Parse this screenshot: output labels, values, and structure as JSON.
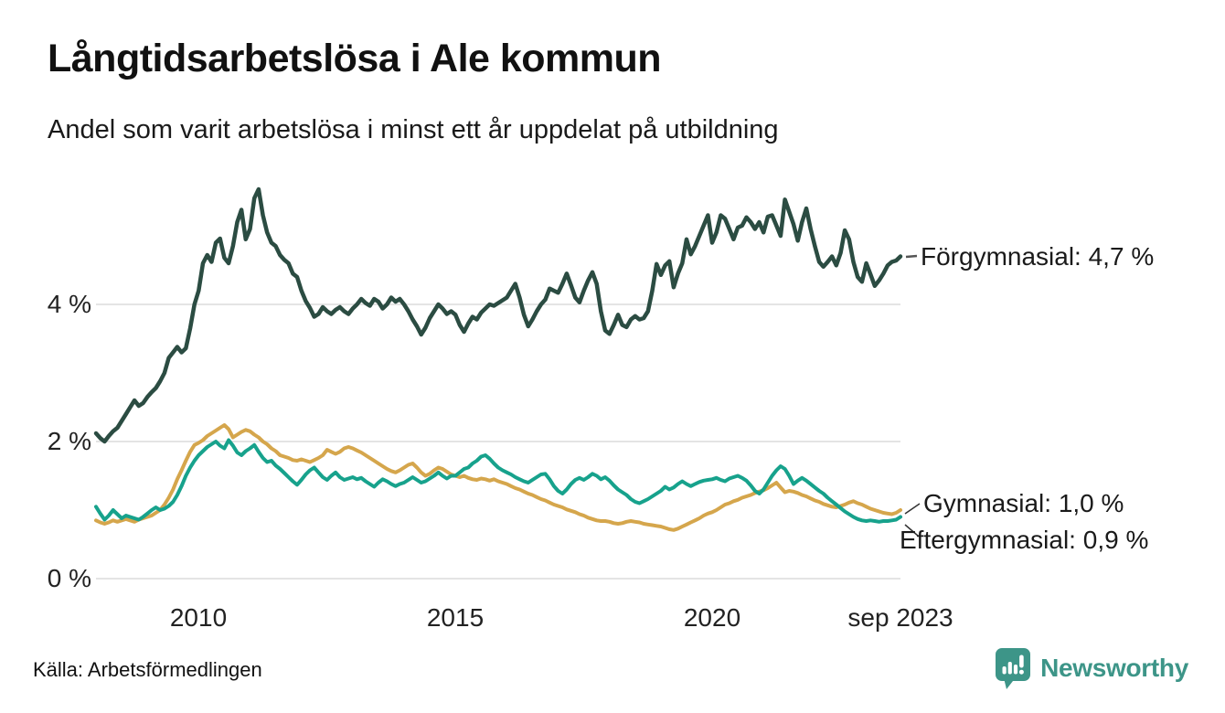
{
  "header": {
    "title": "Långtidsarbetslösa i Ale kommun",
    "subtitle": "Andel som varit arbetslösa i minst ett år uppdelat på utbildning"
  },
  "chart_data": {
    "type": "line",
    "title": "Långtidsarbetslösa i Ale kommun",
    "subtitle": "Andel som varit arbetslösa i minst ett år uppdelat på utbildning",
    "unit": "%",
    "frequency": "monthly",
    "x_start": "2008-01",
    "x_end": "2023-09",
    "ylim": [
      0,
      6
    ],
    "grid": "horizontal",
    "legend_position": "right-edge-labels",
    "y_ticks": [
      {
        "value": 4,
        "label": "4 %"
      },
      {
        "value": 2,
        "label": "2 %"
      },
      {
        "value": 0,
        "label": "0 %"
      }
    ],
    "x_ticks": [
      {
        "month_index": 24,
        "label": "2010"
      },
      {
        "month_index": 84,
        "label": "2015"
      },
      {
        "month_index": 144,
        "label": "2020"
      },
      {
        "month_index": 188,
        "label": "sep 2023"
      }
    ],
    "series": [
      {
        "name": "Förgymnasial",
        "color": "#2B4C42",
        "end_label": "Förgymnasial: 4,7 %",
        "end_value": 4.7,
        "values": [
          2.12,
          2.05,
          2.0,
          2.08,
          2.15,
          2.2,
          2.3,
          2.4,
          2.5,
          2.6,
          2.52,
          2.56,
          2.65,
          2.72,
          2.78,
          2.88,
          3.0,
          3.22,
          3.3,
          3.38,
          3.3,
          3.36,
          3.65,
          4.0,
          4.2,
          4.6,
          4.72,
          4.62,
          4.9,
          4.96,
          4.68,
          4.6,
          4.85,
          5.2,
          5.38,
          4.95,
          5.1,
          5.55,
          5.68,
          5.3,
          5.05,
          4.9,
          4.85,
          4.72,
          4.65,
          4.6,
          4.45,
          4.4,
          4.2,
          4.05,
          3.95,
          3.82,
          3.86,
          3.96,
          3.9,
          3.86,
          3.92,
          3.96,
          3.9,
          3.86,
          3.94,
          4.0,
          4.08,
          4.02,
          3.98,
          4.08,
          4.04,
          3.94,
          4.0,
          4.1,
          4.04,
          4.08,
          4.0,
          3.9,
          3.78,
          3.68,
          3.56,
          3.66,
          3.8,
          3.9,
          4.0,
          3.94,
          3.86,
          3.9,
          3.85,
          3.7,
          3.6,
          3.72,
          3.82,
          3.78,
          3.88,
          3.94,
          4.0,
          3.98,
          4.02,
          4.06,
          4.1,
          4.2,
          4.3,
          4.1,
          3.85,
          3.68,
          3.78,
          3.9,
          4.0,
          4.07,
          4.23,
          4.2,
          4.17,
          4.3,
          4.45,
          4.28,
          4.1,
          4.03,
          4.2,
          4.35,
          4.47,
          4.3,
          3.9,
          3.62,
          3.57,
          3.7,
          3.85,
          3.7,
          3.67,
          3.78,
          3.83,
          3.78,
          3.8,
          3.9,
          4.2,
          4.59,
          4.43,
          4.57,
          4.63,
          4.25,
          4.45,
          4.6,
          4.95,
          4.73,
          4.85,
          5.0,
          5.15,
          5.3,
          4.9,
          5.05,
          5.3,
          5.25,
          5.1,
          4.95,
          5.12,
          5.15,
          5.27,
          5.2,
          5.1,
          5.2,
          5.05,
          5.28,
          5.3,
          5.15,
          5.0,
          5.53,
          5.35,
          5.17,
          4.93,
          5.2,
          5.4,
          5.1,
          4.85,
          4.62,
          4.55,
          4.62,
          4.7,
          4.57,
          4.75,
          5.08,
          4.95,
          4.62,
          4.4,
          4.33,
          4.6,
          4.44,
          4.27,
          4.35,
          4.45,
          4.57,
          4.62,
          4.64,
          4.7
        ]
      },
      {
        "name": "Gymnasial",
        "color": "#D5A64C",
        "end_label": "Gymnasial: 1,0 %",
        "end_value": 1.0,
        "values": [
          0.85,
          0.82,
          0.8,
          0.82,
          0.85,
          0.83,
          0.85,
          0.87,
          0.85,
          0.83,
          0.86,
          0.88,
          0.9,
          0.92,
          0.96,
          1.0,
          1.08,
          1.18,
          1.3,
          1.45,
          1.58,
          1.72,
          1.85,
          1.95,
          1.98,
          2.02,
          2.08,
          2.12,
          2.16,
          2.2,
          2.24,
          2.18,
          2.06,
          2.1,
          2.14,
          2.17,
          2.15,
          2.1,
          2.06,
          2.0,
          1.96,
          1.9,
          1.86,
          1.8,
          1.78,
          1.76,
          1.73,
          1.72,
          1.74,
          1.72,
          1.7,
          1.73,
          1.76,
          1.8,
          1.88,
          1.85,
          1.82,
          1.85,
          1.9,
          1.92,
          1.9,
          1.87,
          1.84,
          1.8,
          1.76,
          1.72,
          1.68,
          1.64,
          1.6,
          1.57,
          1.55,
          1.58,
          1.62,
          1.66,
          1.68,
          1.62,
          1.55,
          1.5,
          1.53,
          1.58,
          1.62,
          1.6,
          1.56,
          1.52,
          1.5,
          1.48,
          1.5,
          1.47,
          1.45,
          1.44,
          1.46,
          1.45,
          1.43,
          1.45,
          1.42,
          1.4,
          1.38,
          1.35,
          1.32,
          1.3,
          1.27,
          1.24,
          1.22,
          1.19,
          1.16,
          1.14,
          1.11,
          1.08,
          1.06,
          1.04,
          1.01,
          0.99,
          0.97,
          0.94,
          0.92,
          0.89,
          0.87,
          0.85,
          0.84,
          0.84,
          0.83,
          0.81,
          0.8,
          0.81,
          0.83,
          0.84,
          0.83,
          0.82,
          0.8,
          0.79,
          0.78,
          0.77,
          0.76,
          0.74,
          0.72,
          0.71,
          0.73,
          0.76,
          0.79,
          0.82,
          0.85,
          0.88,
          0.92,
          0.95,
          0.97,
          1.0,
          1.04,
          1.08,
          1.1,
          1.13,
          1.15,
          1.18,
          1.2,
          1.22,
          1.25,
          1.27,
          1.29,
          1.32,
          1.36,
          1.4,
          1.33,
          1.26,
          1.28,
          1.27,
          1.25,
          1.22,
          1.2,
          1.17,
          1.14,
          1.12,
          1.09,
          1.07,
          1.05,
          1.04,
          1.06,
          1.08,
          1.11,
          1.13,
          1.1,
          1.08,
          1.05,
          1.02,
          1.0,
          0.98,
          0.96,
          0.95,
          0.94,
          0.96,
          1.0
        ]
      },
      {
        "name": "Eftergymnasial",
        "color": "#17A28C",
        "end_label": "Eftergymnasial: 0,9 %",
        "end_value": 0.9,
        "values": [
          1.05,
          0.95,
          0.86,
          0.92,
          1.0,
          0.94,
          0.88,
          0.92,
          0.9,
          0.88,
          0.86,
          0.9,
          0.95,
          1.0,
          1.04,
          1.0,
          1.02,
          1.06,
          1.12,
          1.22,
          1.35,
          1.5,
          1.62,
          1.72,
          1.8,
          1.86,
          1.92,
          1.96,
          2.0,
          1.94,
          1.9,
          2.02,
          1.94,
          1.84,
          1.8,
          1.86,
          1.9,
          1.95,
          1.85,
          1.76,
          1.7,
          1.72,
          1.65,
          1.6,
          1.54,
          1.48,
          1.42,
          1.37,
          1.44,
          1.52,
          1.58,
          1.62,
          1.55,
          1.48,
          1.44,
          1.5,
          1.55,
          1.48,
          1.44,
          1.46,
          1.48,
          1.45,
          1.47,
          1.42,
          1.38,
          1.34,
          1.4,
          1.45,
          1.42,
          1.38,
          1.35,
          1.38,
          1.4,
          1.44,
          1.48,
          1.44,
          1.4,
          1.42,
          1.46,
          1.5,
          1.55,
          1.5,
          1.46,
          1.5,
          1.5,
          1.55,
          1.6,
          1.62,
          1.68,
          1.72,
          1.78,
          1.8,
          1.75,
          1.68,
          1.62,
          1.58,
          1.55,
          1.52,
          1.48,
          1.45,
          1.42,
          1.4,
          1.44,
          1.48,
          1.52,
          1.53,
          1.45,
          1.35,
          1.28,
          1.24,
          1.3,
          1.38,
          1.44,
          1.47,
          1.44,
          1.48,
          1.53,
          1.5,
          1.45,
          1.48,
          1.43,
          1.36,
          1.3,
          1.26,
          1.22,
          1.16,
          1.12,
          1.1,
          1.13,
          1.16,
          1.2,
          1.24,
          1.28,
          1.34,
          1.3,
          1.33,
          1.38,
          1.42,
          1.38,
          1.35,
          1.38,
          1.41,
          1.43,
          1.44,
          1.45,
          1.47,
          1.44,
          1.42,
          1.46,
          1.48,
          1.5,
          1.47,
          1.43,
          1.36,
          1.28,
          1.24,
          1.3,
          1.4,
          1.5,
          1.58,
          1.64,
          1.6,
          1.5,
          1.38,
          1.43,
          1.47,
          1.43,
          1.38,
          1.33,
          1.28,
          1.24,
          1.18,
          1.13,
          1.08,
          1.03,
          0.98,
          0.94,
          0.9,
          0.87,
          0.85,
          0.84,
          0.85,
          0.84,
          0.83,
          0.84,
          0.84,
          0.85,
          0.86,
          0.9
        ]
      }
    ]
  },
  "footer": {
    "source": "Källa: Arbetsförmedlingen",
    "brand": "Newsworthy"
  },
  "colors": {
    "forgymnasial": "#2B4C42",
    "gymnasial": "#D5A64C",
    "eftergymnasial": "#17A28C",
    "gridline": "#e4e4e4",
    "brand_teal": "#3D9588"
  }
}
